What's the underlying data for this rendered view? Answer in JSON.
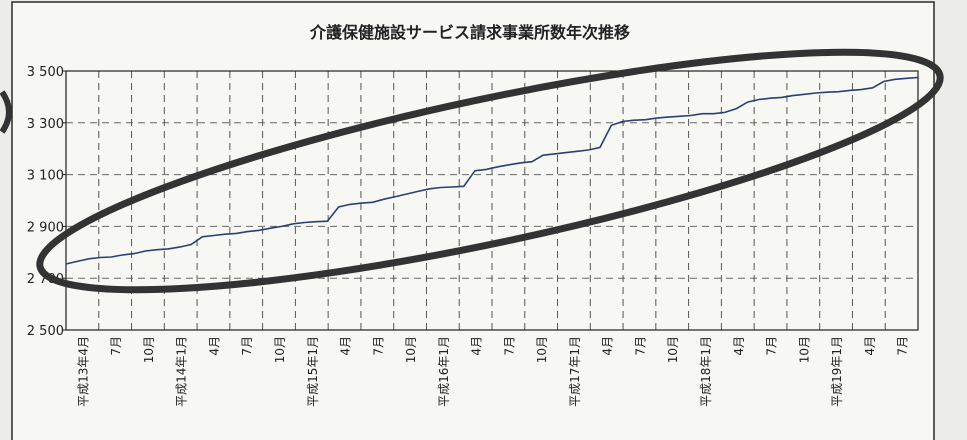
{
  "chart_data": {
    "type": "line",
    "title": "介護保健施設サービス請求事業所数年次推移",
    "xlabel": "",
    "ylabel": "",
    "ylim": [
      2500,
      3500
    ],
    "yticks": [
      2500,
      2700,
      2900,
      3100,
      3300,
      3500
    ],
    "ytick_labels": [
      "2 500",
      "2 700",
      "2 900",
      "3 100",
      "3 300",
      "3 500"
    ],
    "x_ticks": [
      "平成13年4月",
      "7月",
      "10月",
      "平成14年1月",
      "4月",
      "7月",
      "10月",
      "平成15年1月",
      "4月",
      "7月",
      "10月",
      "平成16年1月",
      "4月",
      "7月",
      "10月",
      "平成17年1月",
      "4月",
      "7月",
      "10月",
      "平成18年1月",
      "4月",
      "7月",
      "10月",
      "平成19年1月",
      "4月",
      "7月"
    ],
    "grid": true,
    "line_color": "#2b3f70",
    "series": [
      {
        "x": [
          0,
          0.33,
          0.67,
          1,
          1.33,
          1.67,
          2,
          2.33,
          2.67,
          3,
          3.33,
          3.67,
          4,
          4.33,
          4.67,
          5,
          5.33,
          5.67,
          6,
          6.33,
          6.67,
          7,
          7.33,
          7.67,
          8,
          8.33,
          8.67,
          9,
          9.33,
          9.67,
          10,
          10.33,
          10.67,
          11,
          11.33,
          11.67,
          12,
          12.33,
          12.67,
          13,
          13.33,
          13.67,
          14,
          14.33,
          14.67,
          15,
          15.33,
          15.67,
          16,
          16.33,
          16.67,
          17,
          17.33,
          17.67,
          18,
          18.33,
          18.67,
          19,
          19.33,
          19.67,
          20,
          20.33,
          20.67,
          21,
          21.33,
          21.67,
          22,
          22.33,
          22.67,
          23,
          23.33,
          23.67,
          24,
          24.33,
          24.67,
          25
        ],
        "values": [
          2755,
          2765,
          2775,
          2780,
          2782,
          2790,
          2795,
          2805,
          2810,
          2813,
          2820,
          2830,
          2860,
          2865,
          2870,
          2873,
          2880,
          2885,
          2893,
          2900,
          2910,
          2915,
          2918,
          2920,
          2975,
          2985,
          2990,
          2993,
          3005,
          3015,
          3025,
          3035,
          3045,
          3050,
          3052,
          3055,
          3115,
          3120,
          3130,
          3138,
          3145,
          3150,
          3175,
          3180,
          3185,
          3190,
          3195,
          3205,
          3290,
          3305,
          3310,
          3312,
          3318,
          3322,
          3325,
          3328,
          3335,
          3335,
          3340,
          3355,
          3380,
          3390,
          3395,
          3398,
          3405,
          3410,
          3415,
          3418,
          3420,
          3425,
          3428,
          3435,
          3460,
          3468,
          3472,
          3475
        ]
      }
    ]
  }
}
